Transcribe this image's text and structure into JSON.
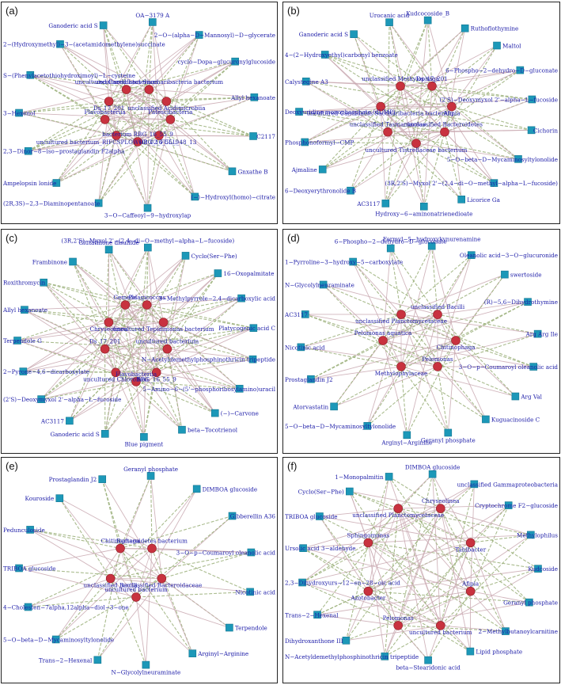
{
  "panels": [
    {
      "label": "(a)",
      "outer": [
        "OA−3179 A",
        "2−O−(alpha−D−Mannosyl)−D−glycerate",
        "cyclo−Dopa−glucuronylglucoside",
        "Allyl hexanoate",
        "C2117",
        "Gnxathe B",
        "(−)−Hydroxyl(homo)−citrate",
        "3−O−Caffeoyl−9−hydroxylap",
        "(2R,3S)−2,3−Diaminopentanoate",
        "Ampelopsin lonide",
        "2,3−Dinor−8−iso−prostaglandin F2alpha",
        "3−Hexenol",
        "S−(Phenylacetothiohydroximoyl)−L−cysteine",
        "2−(Hydroxymethyl)−3−(acetamidomethylene)succinate",
        "Ganoderic acid S"
      ],
      "inner": [
        "uncultured Candidatus Saccharibacteria bacterium",
        "unclassified Acidimicrobiia",
        "Patescibacteria",
        "RBG_16_55_9",
        "bacterium RBG_16_55_9",
        "uncultured bacterium_RIFCSPLOWO2_02_FULL_48_13",
        "Flavobacteriia",
        "Ds_17_201",
        "uncultured bacterium"
      ]
    },
    {
      "label": "(b)",
      "outer": [
        "Kudcocoside_B",
        "Ruthoflothymine",
        "Maltol",
        "6−Phospho−2−dehydro−D−gluconate",
        "(2'S)−Deoxymyxol 2'−alpha−L−fucoside",
        "Cichorin",
        "5−O−beta−D−Mycaminosyltylonolide",
        "(3R,2'S)−Myxol 2'−(2,4−di−O−methyl−alpha−L−fucoside)",
        "Licorice Ga",
        "Hydroxy−6−aminonatrienedioate",
        "AC3117",
        "6−Deoxyerythronolide B",
        "Ajmaline",
        "Phosphonoformyl−CMP",
        "Deoxyuridine monophosphate (dUMP)",
        "Calystegine A3",
        "4−(2−Hydroxyethyl)carbonyl benzoate",
        "Ganoderic acid S",
        "Urocanic acid"
      ],
      "inner": [
        "Ds_17_201",
        "Afipia",
        "unclassified Bacteroidetes",
        "uncultured Tistrellaceae bacterium",
        "unclassified Tasmaniaceae",
        "uncultured Candidatus Saccharibacteria bacterium",
        "unclassified Methylophaga"
      ]
    },
    {
      "label": "(c)",
      "outer": [
        "(3R,2'S)−Myxol 2'−(2,4−di−O−methyl−alpha−L−fucoside)",
        "Cyclo(Ser−Phe)",
        "16−Oxopalmitate",
        "3−Methylpyrrole−2,4−dicarboxylic acid",
        "Platycogenic acid C",
        "N−Acetyldemethylphosphinothricin tripeptide",
        "5−Amino−6−(5'−phosphoribosylamino)uracil",
        "(−)−Carvone",
        "beta−Tocotrienol",
        "Blue pigment",
        "Ganoderic acid S",
        "AC3117",
        "(2'S)−Deoxymyxol 2'−alpha−L−fucoside",
        "2−Pyrone−4,6−dicarboxylate",
        "Terpendole G",
        "Allyl hexanoate",
        "Roxithromycin",
        "Frambinone",
        "Glutathione disulfide"
      ],
      "inner": [
        "Pelagicoccus",
        "uncultured Tepidimonas bacterium",
        "uncultured bacterium",
        "RBG_16_55_9",
        "Flavobacteriia",
        "uncultured Chloroflexi",
        "Ds_17_201",
        "Chryseolinea",
        "Gemella"
      ]
    },
    {
      "label": "(d)",
      "outer": [
        "Formyl−5−hydroxykynurenamine",
        "Oleanolic acid−3−O−glucuronide",
        "swertoside",
        "(R)−5,6−Dihydrothymine",
        "Arg Arg Ile",
        "3−O−p−Coumaroyl oleanolic acid",
        "Arg Val",
        "Kuguacinoside C",
        "Geranyl phosphate",
        "Arginyl−Arginine",
        "5−O−beta−D−Mycaminosyltylonolide",
        "Atorvastatin",
        "Prostaglandin J2",
        "Nicotinic acid",
        "AC3117",
        "N−Glycolylneuraminate",
        "1−Pyrroline−3−hydroxy−5−carboxylate",
        "6−Phospho−2−dehydro−D−gluconate"
      ],
      "inner": [
        "unclassified Bacilli",
        "Chitinophaga",
        "Pelomonas",
        "Methylophylaceae",
        "Pelomonas aquatica",
        "unclassified Planctomycetaceae"
      ]
    },
    {
      "label": "(e)",
      "outer": [
        "Geranyl phosphate",
        "DIMBOA glucoside",
        "Gibberellin A36",
        "3−O−p−Coumaroyl oleanolic acid",
        "Nicotinic acid",
        "Terpendole",
        "Arginyl−Arginine",
        "N−Glycolylneuraminate",
        "Trans−2−Hexenal",
        "5−O−beta−D−Mycaminosyltylonolide",
        "4−Cholesten−7alpha,12alpha−diol−3−one",
        "TRIBOA glucoside",
        "Pedunculoside",
        "Kouroside",
        "Prostaglandin J2"
      ],
      "inner": [
        "Bacteroidetes bacterium",
        "unclassified Bacteroidaceae",
        "uncultured bacterium",
        "unclassified Bacilli",
        "Chitinophaga"
      ]
    },
    {
      "label": "(f)",
      "outer": [
        "DIMBOA glucoside",
        "unclassified Gammaproteobacteria",
        "Cryptochrome F2−glucoside",
        "Methylophilus",
        "Kudcoside",
        "Geranyl phosphate",
        "2−Methylbutanoylcarnitine",
        "Lipid phosphate",
        "beta−Stearidonic acid",
        "N−Acetyldemethylphosphinothricin tripeptide",
        "Dihydroxanthone III",
        "Trans−2−Hexenal",
        "2,3−Dihydroxyurs−12−en−28−oic acid",
        "Ursolic acid 3−aldehyde",
        "TRIBOA glucoside",
        "Cyclo(Ser−Phe)",
        "1−Monopalmitin"
      ],
      "inner": [
        "Chryseolinea",
        "Tahibacter",
        "Afipia",
        "uncultured bacterium",
        "Pelomonas",
        "Azotobacter",
        "Sphingomonas",
        "unclassified Planctomycetaceae"
      ]
    }
  ]
}
